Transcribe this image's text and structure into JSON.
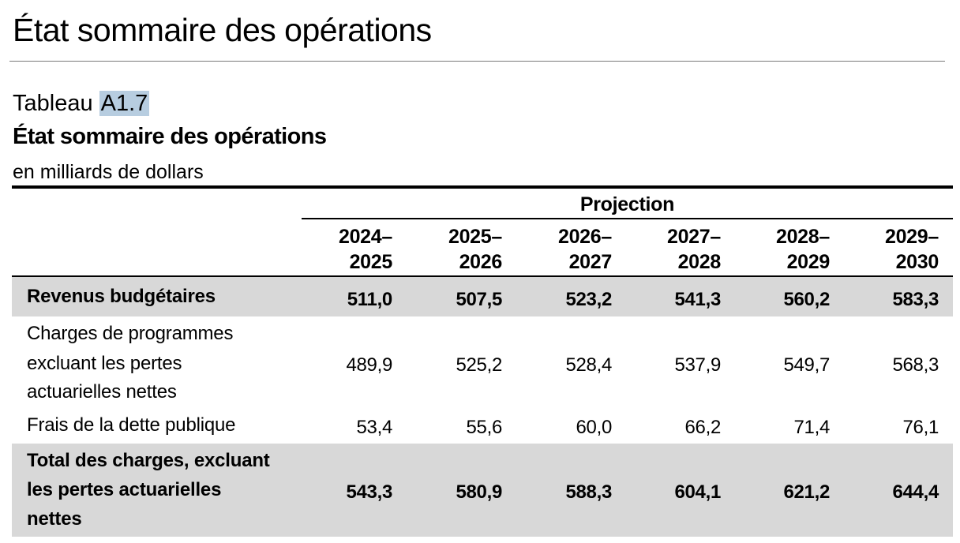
{
  "page_heading": "État sommaire des opérations",
  "table": {
    "label_prefix": "Tableau",
    "label_number": "A1.7",
    "title": "État sommaire des opérations",
    "units": "en milliards de dollars",
    "projection_label": "Projection",
    "years": [
      {
        "line1": "2024–",
        "line2": "2025"
      },
      {
        "line1": "2025–",
        "line2": "2026"
      },
      {
        "line1": "2026–",
        "line2": "2027"
      },
      {
        "line1": "2027–",
        "line2": "2028"
      },
      {
        "line1": "2028–",
        "line2": "2029"
      },
      {
        "line1": "2029–",
        "line2": "2030"
      }
    ],
    "rows": [
      {
        "label_lines": [
          "Revenus budgétaires"
        ],
        "values": [
          "511,0",
          "507,5",
          "523,2",
          "541,3",
          "560,2",
          "583,3"
        ],
        "shaded": true,
        "bold": true
      },
      {
        "label_lines": [
          "Charges de programmes",
          "excluant les pertes",
          "actuarielles nettes"
        ],
        "values": [
          "489,9",
          "525,2",
          "528,4",
          "537,9",
          "549,7",
          "568,3"
        ],
        "shaded": false,
        "bold": false
      },
      {
        "label_lines": [
          "Frais de la dette publique"
        ],
        "values": [
          "53,4",
          "55,6",
          "60,0",
          "66,2",
          "71,4",
          "76,1"
        ],
        "shaded": false,
        "bold": false
      },
      {
        "label_lines": [
          "Total des charges, excluant",
          "les pertes actuarielles",
          "nettes"
        ],
        "values": [
          "543,3",
          "580,9",
          "588,3",
          "604,1",
          "621,2",
          "644,4"
        ],
        "shaded": true,
        "bold": true
      }
    ]
  }
}
